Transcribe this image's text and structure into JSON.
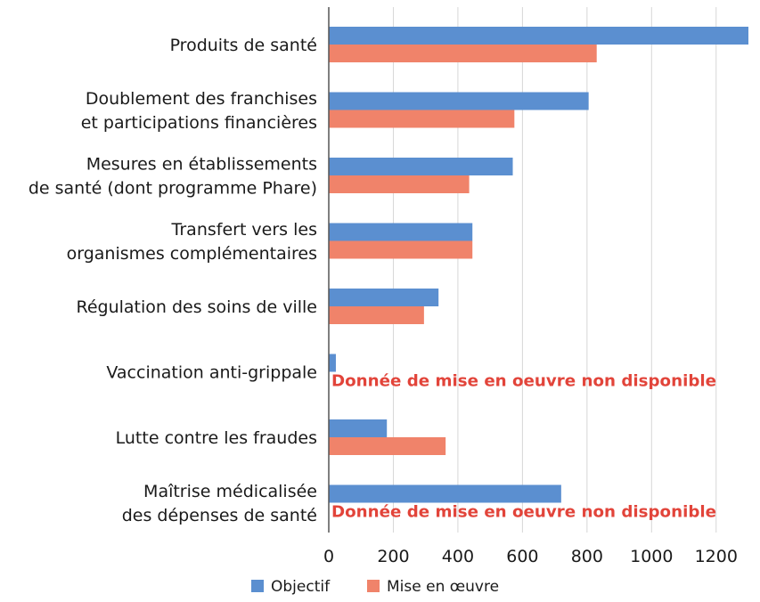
{
  "chart_data": {
    "type": "bar",
    "orientation": "horizontal",
    "categories": [
      [
        "Produits de santé"
      ],
      [
        "Doublement des franchises",
        "et participations financières"
      ],
      [
        "Mesures en établissements",
        "de santé (dont programme Phare)"
      ],
      [
        "Transfert vers les",
        "organismes complémentaires"
      ],
      [
        "Régulation des soins de ville"
      ],
      [
        "Vaccination anti-grippale"
      ],
      [
        "Lutte contre les fraudes"
      ],
      [
        "Maîtrise médicalisée",
        "des dépenses de santé"
      ]
    ],
    "series": [
      {
        "name": "Objectif",
        "color": "#5b8fd0",
        "values": [
          1300,
          805,
          570,
          445,
          340,
          22,
          180,
          720
        ]
      },
      {
        "name": "Mise en œuvre",
        "color": "#f0836a",
        "values": [
          830,
          575,
          435,
          445,
          295,
          null,
          362,
          null
        ]
      }
    ],
    "annotations": [
      {
        "category_index": 5,
        "text": "Donnée de mise en oeuvre non disponible",
        "color": "#e2443a"
      },
      {
        "category_index": 7,
        "text": "Donnée de mise en oeuvre non disponible",
        "color": "#e2443a"
      }
    ],
    "xlim": [
      0,
      1300
    ],
    "xticks": [
      0,
      200,
      400,
      600,
      800,
      1000,
      1200
    ],
    "grid": true,
    "legend_position": "bottom",
    "title": "",
    "xlabel": "",
    "ylabel": ""
  }
}
